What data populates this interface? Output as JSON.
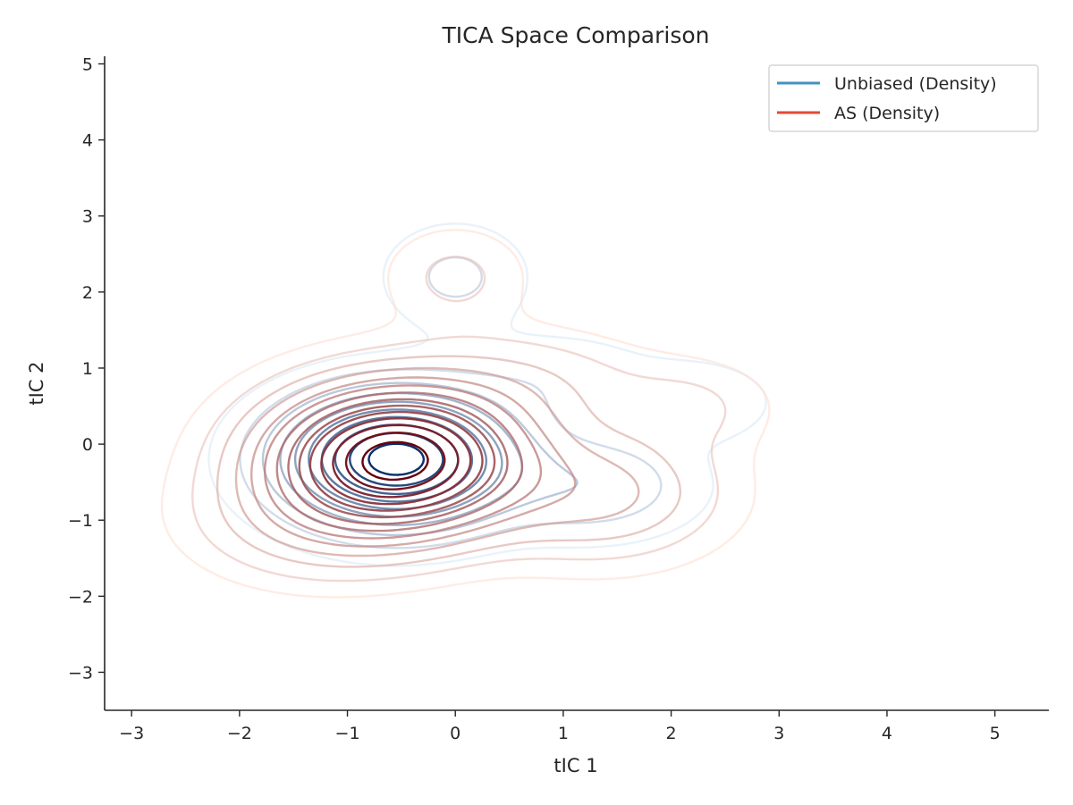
{
  "chart_data": {
    "type": "contour",
    "title": "TICA Space Comparison",
    "xlabel": "tIC 1",
    "ylabel": "tIC 2",
    "xlim": [
      -3.25,
      5.5
    ],
    "ylim": [
      -3.5,
      5.1
    ],
    "xticks": [
      -3,
      -2,
      -1,
      0,
      1,
      2,
      3,
      4,
      5
    ],
    "yticks": [
      -3,
      -2,
      -1,
      0,
      1,
      2,
      3,
      4,
      5
    ],
    "xtick_labels": [
      "−3",
      "−2",
      "−1",
      "0",
      "1",
      "2",
      "3",
      "4",
      "5"
    ],
    "ytick_labels": [
      "−3",
      "−2",
      "−1",
      "0",
      "1",
      "2",
      "3",
      "4",
      "5"
    ],
    "grid": false,
    "legend_position": "top-right",
    "series": [
      {
        "name": "Unbiased (Density)",
        "legend_color": "#4292c6",
        "levels": 10,
        "color_light": "#dbe9f6",
        "color_dark": "#08306b",
        "components": [
          {
            "cx": -0.55,
            "cy": -0.2,
            "sx": 0.62,
            "sy": 0.5,
            "w": 1.0
          },
          {
            "cx": 0.0,
            "cy": 2.2,
            "sx": 0.4,
            "sy": 0.42,
            "w": 0.08
          },
          {
            "cx": 2.25,
            "cy": 0.55,
            "sx": 0.42,
            "sy": 0.32,
            "w": 0.06
          },
          {
            "cx": 1.25,
            "cy": -0.55,
            "sx": 0.6,
            "sy": 0.42,
            "w": 0.12
          },
          {
            "cx": 0.9,
            "cy": 0.85,
            "sx": 0.65,
            "sy": 0.4,
            "w": 0.05
          }
        ]
      },
      {
        "name": "AS (Density)",
        "legend_color": "#e34a33",
        "levels": 14,
        "color_light": "#fee0d2",
        "color_dark": "#67000d",
        "components": [
          {
            "cx": -0.55,
            "cy": -0.2,
            "sx": 0.72,
            "sy": 0.58,
            "w": 1.0
          },
          {
            "cx": 0.0,
            "cy": 2.2,
            "sx": 0.42,
            "sy": 0.42,
            "w": 0.06
          },
          {
            "cx": 2.2,
            "cy": 0.5,
            "sx": 0.5,
            "sy": 0.4,
            "w": 0.05
          },
          {
            "cx": 1.35,
            "cy": -0.65,
            "sx": 0.7,
            "sy": 0.55,
            "w": 0.16
          },
          {
            "cx": 0.6,
            "cy": 0.8,
            "sx": 0.75,
            "sy": 0.45,
            "w": 0.08
          },
          {
            "cx": -1.3,
            "cy": -1.0,
            "sx": 0.7,
            "sy": 0.5,
            "w": 0.12
          }
        ]
      }
    ]
  }
}
